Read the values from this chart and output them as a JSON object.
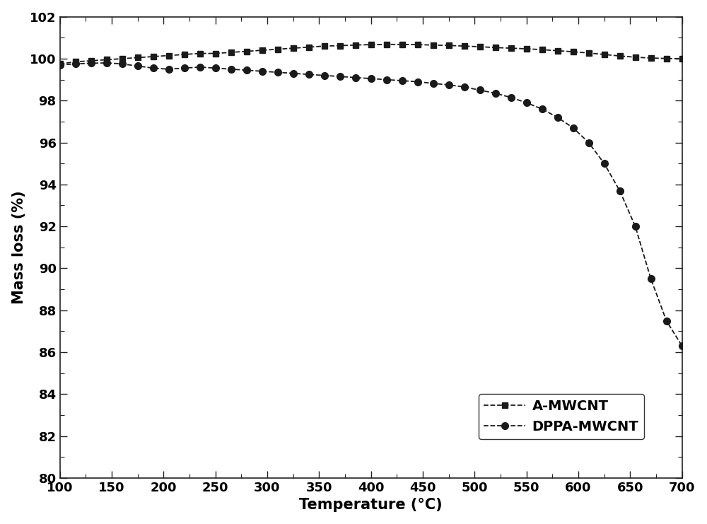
{
  "title": "",
  "xlabel": "Temperature (°C)",
  "ylabel": "Mass loss (%)",
  "xlim": [
    100,
    700
  ],
  "ylim": [
    80,
    102
  ],
  "xticks": [
    100,
    150,
    200,
    250,
    300,
    350,
    400,
    450,
    500,
    550,
    600,
    650,
    700
  ],
  "yticks": [
    80,
    82,
    84,
    86,
    88,
    90,
    92,
    94,
    96,
    98,
    100,
    102
  ],
  "background_color": "#ffffff",
  "line_color": "#1a1a1a",
  "series": [
    {
      "label": "A-MWCNT",
      "marker": "s",
      "markersize": 6,
      "color": "#1a1a1a",
      "x": [
        100,
        115,
        130,
        145,
        160,
        175,
        190,
        205,
        220,
        235,
        250,
        265,
        280,
        295,
        310,
        325,
        340,
        355,
        370,
        385,
        400,
        415,
        430,
        445,
        460,
        475,
        490,
        505,
        520,
        535,
        550,
        565,
        580,
        595,
        610,
        625,
        640,
        655,
        670,
        685,
        700
      ],
      "y": [
        99.75,
        99.85,
        99.9,
        99.95,
        100.0,
        100.05,
        100.1,
        100.15,
        100.2,
        100.25,
        100.25,
        100.3,
        100.35,
        100.4,
        100.45,
        100.5,
        100.55,
        100.6,
        100.62,
        100.65,
        100.67,
        100.68,
        100.68,
        100.67,
        100.65,
        100.63,
        100.6,
        100.57,
        100.53,
        100.5,
        100.47,
        100.43,
        100.38,
        100.33,
        100.27,
        100.2,
        100.13,
        100.07,
        100.03,
        100.01,
        100.0
      ]
    },
    {
      "label": "DPPA-MWCNT",
      "marker": "o",
      "markersize": 7,
      "color": "#1a1a1a",
      "x": [
        100,
        115,
        130,
        145,
        160,
        175,
        190,
        205,
        220,
        235,
        250,
        265,
        280,
        295,
        310,
        325,
        340,
        355,
        370,
        385,
        400,
        415,
        430,
        445,
        460,
        475,
        490,
        505,
        520,
        535,
        550,
        565,
        580,
        595,
        610,
        625,
        640,
        655,
        670,
        685,
        700
      ],
      "y": [
        99.7,
        99.75,
        99.78,
        99.8,
        99.75,
        99.65,
        99.55,
        99.5,
        99.55,
        99.6,
        99.55,
        99.5,
        99.45,
        99.4,
        99.35,
        99.3,
        99.25,
        99.2,
        99.15,
        99.1,
        99.05,
        99.0,
        98.95,
        98.9,
        98.82,
        98.75,
        98.65,
        98.5,
        98.35,
        98.15,
        97.9,
        97.6,
        97.2,
        96.7,
        96.0,
        95.0,
        93.7,
        92.0,
        89.5,
        87.5,
        86.3
      ]
    }
  ],
  "fontsize_axis_label": 15,
  "fontsize_tick": 13,
  "fontsize_legend": 14
}
